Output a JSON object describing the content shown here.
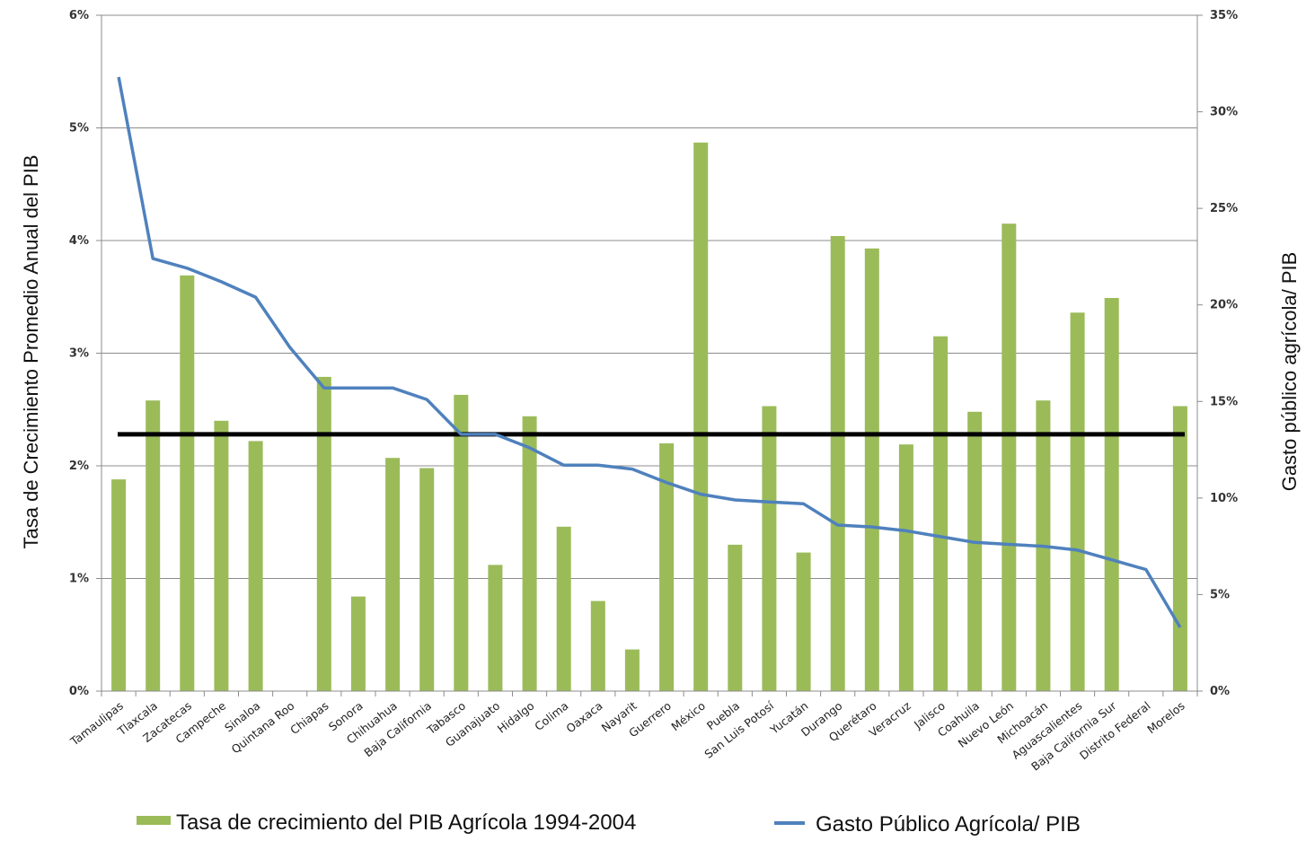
{
  "chart_data": {
    "type": "bar",
    "title": "",
    "ylabel": "Tasa de Crecimiento Promedio Anual del PIB",
    "y2label": "Gasto público agrícola/  PIB",
    "ylim": [
      0,
      6
    ],
    "y2lim": [
      0,
      35
    ],
    "yticks": [
      "0%",
      "1%",
      "2%",
      "3%",
      "4%",
      "5%",
      "6%"
    ],
    "y2ticks": [
      "0%",
      "5%",
      "10%",
      "15%",
      "20%",
      "25%",
      "30%",
      "35%"
    ],
    "grid": true,
    "legend_position": "bottom",
    "categories": [
      "Tamaulipas",
      "Tlaxcala",
      "Zacatecas",
      "Campeche",
      "Sinaloa",
      "Quintana Roo",
      "Chiapas",
      "Sonora",
      "Chihuahua",
      "Baja California",
      "Tabasco",
      "Guanajuato",
      "Hidalgo",
      "Colima",
      "Oaxaca",
      "Nayarit",
      "Guerrero",
      "México",
      "Puebla",
      "San Luis Potosí",
      "Yucatán",
      "Durango",
      "Querétaro",
      "Veracruz",
      "Jalisco",
      "Coahuila",
      "Nuevo León",
      "Michoacán",
      "Aguascalientes",
      "Baja California Sur",
      "Distrito Federal",
      "Morelos"
    ],
    "series": [
      {
        "name": "Tasa de crecimiento del PIB Agrícola 1994-2004",
        "type": "bar",
        "axis": "left",
        "color": "#9bbb59",
        "values": [
          1.88,
          2.58,
          3.69,
          2.4,
          2.22,
          0,
          2.79,
          0.84,
          2.07,
          1.98,
          2.63,
          1.12,
          2.44,
          1.46,
          0.8,
          0.37,
          2.2,
          4.87,
          1.3,
          2.53,
          1.23,
          4.04,
          3.93,
          2.19,
          3.15,
          2.48,
          4.15,
          2.58,
          3.36,
          3.49,
          0,
          2.53
        ]
      },
      {
        "name": "Gasto Público Agrícola/ PIB",
        "type": "line",
        "axis": "right",
        "color": "#4f81bd",
        "values": [
          31.8,
          22.4,
          21.9,
          21.2,
          20.4,
          17.8,
          15.7,
          15.7,
          15.7,
          15.1,
          13.3,
          13.3,
          12.6,
          11.7,
          11.7,
          11.5,
          10.8,
          10.2,
          9.9,
          9.8,
          9.7,
          8.6,
          8.5,
          8.3,
          8.0,
          7.7,
          7.6,
          7.5,
          7.3,
          6.8,
          6.3,
          3.3
        ]
      }
    ],
    "reference_line": {
      "value": 2.28,
      "axis": "left",
      "color": "#000000"
    }
  }
}
